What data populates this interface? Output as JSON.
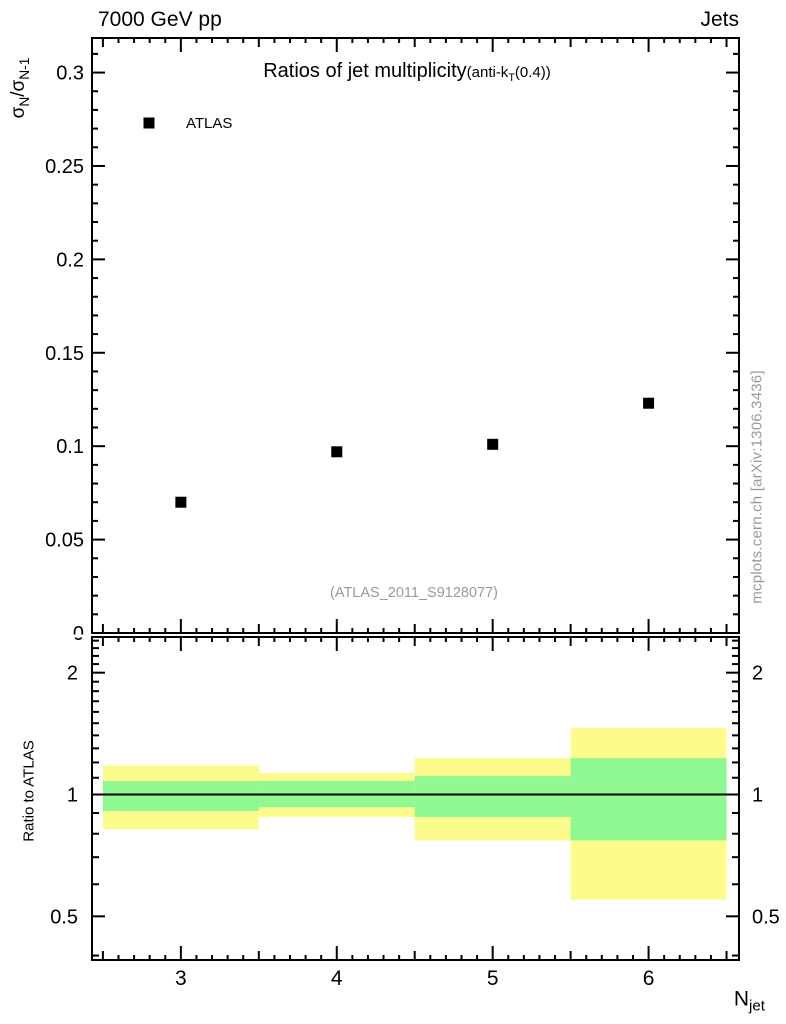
{
  "header": {
    "left": "7000 GeV pp",
    "right": "Jets"
  },
  "top_panel": {
    "title_main": "Ratios of jet multiplicity",
    "title_paren_pre": "(anti-k",
    "title_paren_sub": "T",
    "title_paren_post": "(0.4))",
    "ylabel_sigma1": "σ",
    "ylabel_sub1": "N",
    "ylabel_sigma2": "/σ",
    "ylabel_sub2": "N-1",
    "legend_label": "ATLAS",
    "watermark": "(ATLAS_2011_S9128077)"
  },
  "bottom_panel": {
    "ylabel": "Ratio to ATLAS",
    "xlabel_main": "N",
    "xlabel_sub": "jet"
  },
  "side_note": "mcplots.cern.ch [arXiv:1306.3436]",
  "colors": {
    "band_outer": "#fcfc8c",
    "band_inner": "#90f890",
    "marker": "#000000",
    "frame": "#000000",
    "muted_text": "#9a9a9a"
  },
  "chart_data": [
    {
      "type": "scatter",
      "title": "Ratios of jet multiplicity (anti-kT(0.4))",
      "xlabel": "Njet",
      "ylabel": "sigma_N / sigma_N-1",
      "xlim": [
        2.43,
        6.58
      ],
      "ylim": [
        0,
        0.3185
      ],
      "grid": false,
      "legend_position": "top-left-inside",
      "series": [
        {
          "name": "ATLAS",
          "marker": "filled-square",
          "color": "#000000",
          "x": [
            3,
            4,
            5,
            6
          ],
          "y": [
            0.07,
            0.097,
            0.101,
            0.123
          ]
        }
      ],
      "xticks_major": [
        3,
        4,
        5,
        6
      ],
      "xticks_minor_step": 0.1,
      "yticks": [
        [
          0,
          "0"
        ],
        [
          0.05,
          "0.05"
        ],
        [
          0.1,
          "0.1"
        ],
        [
          0.15,
          "0.15"
        ],
        [
          0.2,
          "0.2"
        ],
        [
          0.25,
          "0.25"
        ],
        [
          0.3,
          "0.3"
        ]
      ],
      "yticks_minor_step": 0.01,
      "annotation": "(ATLAS_2011_S9128077)"
    },
    {
      "type": "ratio-bands",
      "title": "",
      "xlabel": "Njet",
      "ylabel": "Ratio to ATLAS",
      "yscale": "log",
      "xlim": [
        2.43,
        6.58
      ],
      "ylim": [
        0.39,
        2.45
      ],
      "reference_line": 1,
      "xticks": [
        [
          3,
          "3"
        ],
        [
          4,
          "4"
        ],
        [
          5,
          "5"
        ],
        [
          6,
          "6"
        ]
      ],
      "xticks_minor_step": 0.1,
      "yticks": [
        [
          0.5,
          "0.5"
        ],
        [
          1,
          "1"
        ],
        [
          2,
          "2"
        ]
      ],
      "labels_both_sides": true,
      "bins": [
        {
          "x_low": 2.5,
          "x_high": 3.5,
          "outer_low": 0.82,
          "outer_high": 1.18,
          "inner_low": 0.91,
          "inner_high": 1.08
        },
        {
          "x_low": 3.5,
          "x_high": 4.5,
          "outer_low": 0.88,
          "outer_high": 1.13,
          "inner_low": 0.93,
          "inner_high": 1.08
        },
        {
          "x_low": 4.5,
          "x_high": 5.5,
          "outer_low": 0.77,
          "outer_high": 1.23,
          "inner_low": 0.88,
          "inner_high": 1.11
        },
        {
          "x_low": 5.5,
          "x_high": 6.5,
          "outer_low": 0.55,
          "outer_high": 1.46,
          "inner_low": 0.77,
          "inner_high": 1.23
        }
      ]
    }
  ]
}
